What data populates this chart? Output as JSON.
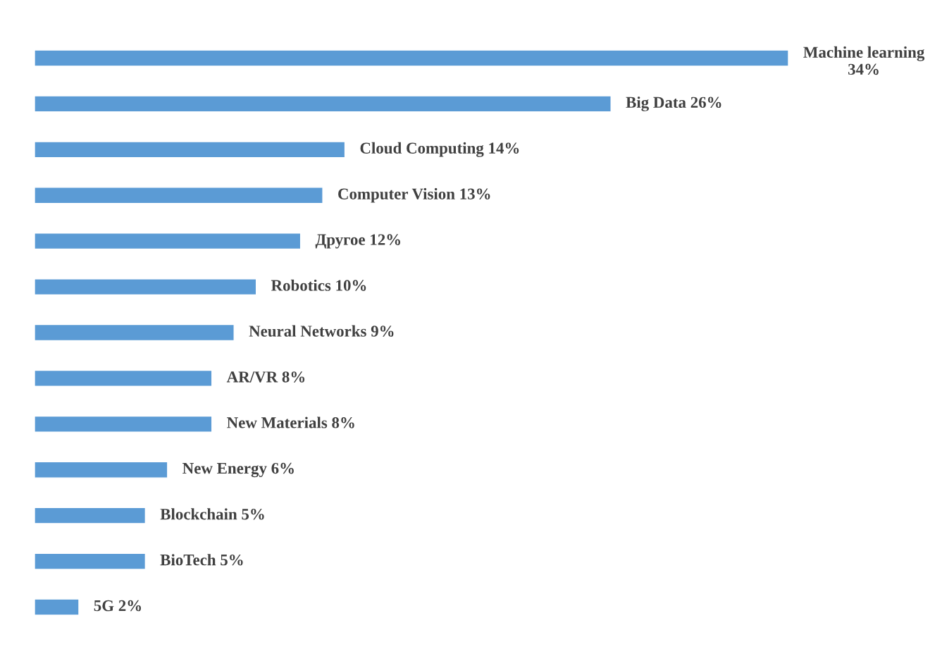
{
  "chart_data": {
    "type": "bar",
    "orientation": "horizontal",
    "color": "#5b9bd5",
    "categories": [
      null,
      null,
      null,
      null,
      null,
      null,
      null,
      null,
      null,
      null,
      null,
      null,
      null
    ],
    "values": [
      34,
      26,
      14,
      13,
      12,
      10,
      9,
      8,
      8,
      6,
      5,
      5,
      2
    ],
    "value_labels": [
      "Machine learning 34%",
      "Big Data 26%",
      "Cloud Computing 14%",
      "Computer Vision 13%",
      "Другое 12%",
      "Robotics 10%",
      "Neural Networks 9%",
      "AR/VR 8%",
      "New Materials 8%",
      "New Energy 6%",
      "Blockchain 5%",
      "BioTech 5%",
      "5G 2%"
    ],
    "tick_labels": false,
    "grid": false,
    "legend": false
  }
}
